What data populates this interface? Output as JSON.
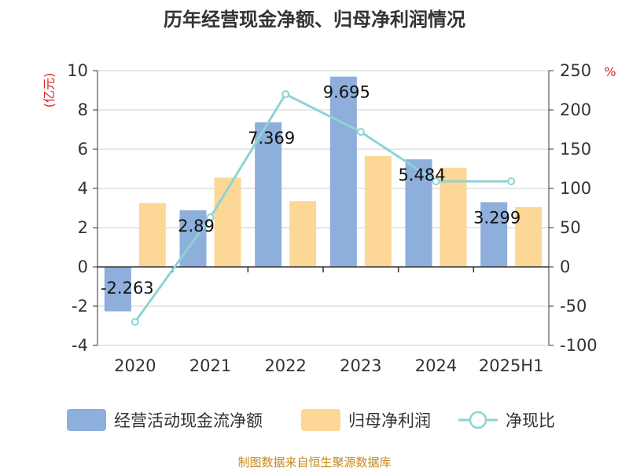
{
  "chart_data": {
    "type": "bar",
    "title": "历年经营现金净额、归母净利润情况",
    "categories": [
      "2020",
      "2021",
      "2022",
      "2023",
      "2024",
      "2025H1"
    ],
    "y_left": {
      "unit": "(亿元)",
      "min": -4,
      "max": 10,
      "ticks": [
        "-4",
        "-2",
        "0",
        "2",
        "4",
        "6",
        "8",
        "10"
      ]
    },
    "y_right": {
      "unit": "%",
      "min": -100,
      "max": 250,
      "ticks": [
        "-100",
        "-50",
        "0",
        "50",
        "100",
        "150",
        "200",
        "250"
      ]
    },
    "series": [
      {
        "name": "经营活动现金流净额",
        "type": "bar",
        "axis": "left",
        "color": "#8eaedb",
        "values": [
          -2.263,
          2.89,
          7.369,
          9.695,
          5.484,
          3.299
        ],
        "labels": [
          "-2.263",
          "2.89",
          "7.369",
          "9.695",
          "5.484",
          "3.299"
        ]
      },
      {
        "name": "归母净利润",
        "type": "bar",
        "axis": "left",
        "color": "#fdd795",
        "values": [
          3.25,
          4.55,
          3.35,
          5.65,
          5.05,
          3.05
        ]
      },
      {
        "name": "净现比",
        "type": "line",
        "axis": "right",
        "color": "#8fd3d3",
        "values": [
          -70,
          63,
          220,
          172,
          109,
          109
        ]
      }
    ],
    "grid": true,
    "legend": "bottom"
  },
  "source": "制图数据来自恒生聚源数据库"
}
